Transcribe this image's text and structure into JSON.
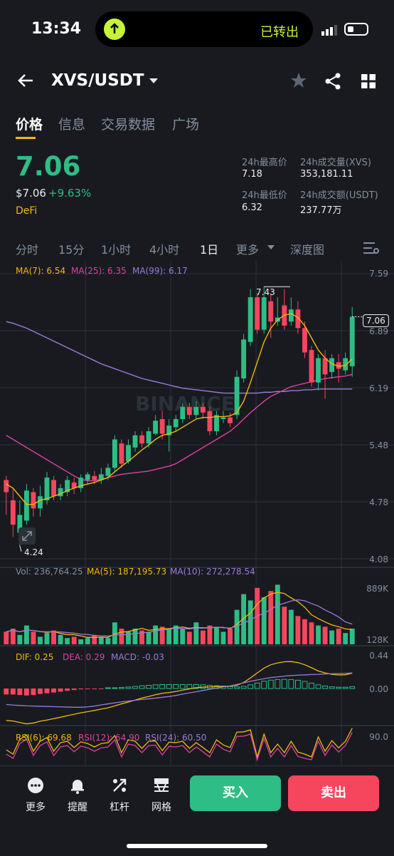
{
  "status": {
    "time": "13:34",
    "island_text": "已转出"
  },
  "header": {
    "pair": "XVS/USDT"
  },
  "tabs": [
    "价格",
    "信息",
    "交易数据",
    "广场"
  ],
  "price": {
    "last": "7.06",
    "usd": "$7.06",
    "change": "+9.63%",
    "category": "DeFi",
    "stats": {
      "high_label": "24h最高价",
      "high": "7.18",
      "low_label": "24h最低价",
      "low": "6.32",
      "vol_label": "24h成交量(XVS)",
      "vol": "353,181.11",
      "amt_label": "24h成交额(USDT)",
      "amt": "237.77万"
    }
  },
  "intervals": [
    "分时",
    "15分",
    "1小时",
    "4小时",
    "1日",
    "更多",
    "深度图"
  ],
  "main_chart": {
    "ma7": "MA(7): 6.54",
    "ma25": "MA(25): 6.35",
    "ma99": "MA(99): 6.17",
    "y_axis": [
      "7.59",
      "6.89",
      "6.19",
      "5.48",
      "4.78",
      "4.08"
    ],
    "high_mark": "7.43",
    "low_mark": "4.24",
    "last_tag": "7.06",
    "watermark": "BINANCE",
    "colors": {
      "up": "#2ebd85",
      "down": "#f6465d",
      "ma7": "#f0b90b",
      "ma25": "#e040a0",
      "ma99": "#9b7bd6"
    }
  },
  "volume_chart": {
    "vol": "Vol: 236,764.25",
    "ma5": "MA(5): 187,195.73",
    "ma10": "MA(10): 272,278.54",
    "y_axis": [
      "889K",
      "128K"
    ]
  },
  "macd_chart": {
    "dif": "DIF: 0.25",
    "dea": "DEA: 0.29",
    "macd": "MACD: -0.03",
    "y_axis": [
      "0.44",
      "0.00"
    ]
  },
  "rsi_chart": {
    "rsi6": "RSI(6): 69.68",
    "rsi12": "RSI(12): 64.90",
    "rsi24": "RSI(24): 60.50",
    "y_axis": [
      "90.0"
    ]
  },
  "bottom_bar": {
    "more": "更多",
    "alert": "提醒",
    "leverage": "杠杆",
    "grid": "网格",
    "buy": "买入",
    "sell": "卖出"
  },
  "chart_data": {
    "type": "candlestick",
    "ylim": [
      4.08,
      7.59
    ],
    "candles": [
      {
        "o": 5.05,
        "c": 4.9,
        "h": 5.1,
        "l": 4.62
      },
      {
        "o": 4.8,
        "c": 4.5,
        "h": 4.95,
        "l": 4.35
      },
      {
        "o": 4.4,
        "c": 4.62,
        "h": 4.8,
        "l": 4.24
      },
      {
        "o": 4.55,
        "c": 4.92,
        "h": 5.0,
        "l": 4.5
      },
      {
        "o": 4.9,
        "c": 4.7,
        "h": 4.95,
        "l": 4.6
      },
      {
        "o": 4.7,
        "c": 4.85,
        "h": 4.98,
        "l": 4.6
      },
      {
        "o": 4.8,
        "c": 5.08,
        "h": 5.15,
        "l": 4.75
      },
      {
        "o": 5.05,
        "c": 4.85,
        "h": 5.1,
        "l": 4.8
      },
      {
        "o": 4.85,
        "c": 4.95,
        "h": 5.0,
        "l": 4.8
      },
      {
        "o": 4.9,
        "c": 5.05,
        "h": 5.1,
        "l": 4.85
      },
      {
        "o": 5.02,
        "c": 4.95,
        "h": 5.08,
        "l": 4.88
      },
      {
        "o": 4.95,
        "c": 5.08,
        "h": 5.12,
        "l": 4.9
      },
      {
        "o": 5.05,
        "c": 5.12,
        "h": 5.15,
        "l": 5.0
      },
      {
        "o": 5.1,
        "c": 5.05,
        "h": 5.16,
        "l": 5.0
      },
      {
        "o": 5.05,
        "c": 5.12,
        "h": 5.2,
        "l": 5.0
      },
      {
        "o": 5.1,
        "c": 5.2,
        "h": 5.25,
        "l": 5.05
      },
      {
        "o": 5.2,
        "c": 5.55,
        "h": 5.6,
        "l": 5.15
      },
      {
        "o": 5.5,
        "c": 5.25,
        "h": 5.55,
        "l": 5.2
      },
      {
        "o": 5.28,
        "c": 5.48,
        "h": 5.55,
        "l": 5.25
      },
      {
        "o": 5.45,
        "c": 5.6,
        "h": 5.65,
        "l": 5.4
      },
      {
        "o": 5.6,
        "c": 5.5,
        "h": 5.65,
        "l": 5.45
      },
      {
        "o": 5.5,
        "c": 5.65,
        "h": 5.7,
        "l": 5.45
      },
      {
        "o": 5.62,
        "c": 5.78,
        "h": 5.85,
        "l": 5.6
      },
      {
        "o": 5.8,
        "c": 5.62,
        "h": 5.9,
        "l": 5.55
      },
      {
        "o": 5.6,
        "c": 5.72,
        "h": 5.8,
        "l": 5.4
      },
      {
        "o": 5.7,
        "c": 5.8,
        "h": 5.85,
        "l": 5.65
      },
      {
        "o": 5.8,
        "c": 5.95,
        "h": 6.0,
        "l": 5.75
      },
      {
        "o": 5.95,
        "c": 5.85,
        "h": 6.0,
        "l": 5.8
      },
      {
        "o": 5.85,
        "c": 5.95,
        "h": 6.02,
        "l": 5.8
      },
      {
        "o": 5.95,
        "c": 5.88,
        "h": 6.0,
        "l": 5.8
      },
      {
        "o": 5.9,
        "c": 5.65,
        "h": 5.95,
        "l": 5.6
      },
      {
        "o": 5.65,
        "c": 5.85,
        "h": 5.9,
        "l": 5.6
      },
      {
        "o": 5.8,
        "c": 5.82,
        "h": 5.9,
        "l": 5.75
      },
      {
        "o": 5.82,
        "c": 5.75,
        "h": 5.88,
        "l": 5.7
      },
      {
        "o": 5.85,
        "c": 6.32,
        "h": 6.4,
        "l": 5.8
      },
      {
        "o": 6.3,
        "c": 6.78,
        "h": 6.85,
        "l": 6.25
      },
      {
        "o": 6.75,
        "c": 7.3,
        "h": 7.4,
        "l": 6.7
      },
      {
        "o": 7.3,
        "c": 6.9,
        "h": 7.35,
        "l": 6.85
      },
      {
        "o": 6.9,
        "c": 7.3,
        "h": 7.43,
        "l": 6.85
      },
      {
        "o": 7.25,
        "c": 7.0,
        "h": 7.35,
        "l": 6.8
      },
      {
        "o": 7.0,
        "c": 7.05,
        "h": 7.3,
        "l": 6.95
      },
      {
        "o": 7.2,
        "c": 6.95,
        "h": 7.4,
        "l": 6.9
      },
      {
        "o": 7.0,
        "c": 7.15,
        "h": 7.3,
        "l": 6.95
      },
      {
        "o": 7.15,
        "c": 6.92,
        "h": 7.25,
        "l": 6.85
      },
      {
        "o": 6.92,
        "c": 6.62,
        "h": 7.0,
        "l": 6.55
      },
      {
        "o": 6.65,
        "c": 6.25,
        "h": 6.7,
        "l": 6.2
      },
      {
        "o": 6.25,
        "c": 6.55,
        "h": 6.6,
        "l": 6.15
      },
      {
        "o": 6.55,
        "c": 6.35,
        "h": 6.65,
        "l": 6.05
      },
      {
        "o": 6.38,
        "c": 6.55,
        "h": 6.6,
        "l": 6.3
      },
      {
        "o": 6.5,
        "c": 6.42,
        "h": 6.6,
        "l": 6.25
      },
      {
        "o": 6.4,
        "c": 6.55,
        "h": 6.62,
        "l": 6.35
      },
      {
        "o": 6.45,
        "c": 7.06,
        "h": 7.18,
        "l": 6.32
      }
    ],
    "volume": [
      0.2,
      0.25,
      0.15,
      0.3,
      0.2,
      0.12,
      0.18,
      0.22,
      0.15,
      0.1,
      0.12,
      0.08,
      0.1,
      0.15,
      0.12,
      0.1,
      0.35,
      0.25,
      0.2,
      0.25,
      0.22,
      0.2,
      0.3,
      0.28,
      0.25,
      0.3,
      0.25,
      0.2,
      0.35,
      0.22,
      0.3,
      0.28,
      0.2,
      0.25,
      0.55,
      0.8,
      0.7,
      0.9,
      0.75,
      0.85,
      0.95,
      0.6,
      0.55,
      0.45,
      0.4,
      0.35,
      0.3,
      0.28,
      0.22,
      0.25,
      0.18,
      0.25
    ],
    "ma7": [
      5.0,
      4.95,
      4.85,
      4.75,
      4.75,
      4.8,
      4.82,
      4.85,
      4.88,
      4.92,
      4.95,
      4.98,
      5.0,
      5.02,
      5.05,
      5.08,
      5.15,
      5.22,
      5.28,
      5.35,
      5.42,
      5.48,
      5.55,
      5.6,
      5.62,
      5.65,
      5.7,
      5.75,
      5.8,
      5.82,
      5.82,
      5.83,
      5.83,
      5.84,
      5.88,
      6.02,
      6.25,
      6.5,
      6.75,
      6.92,
      7.02,
      7.08,
      7.1,
      7.05,
      6.95,
      6.8,
      6.65,
      6.55,
      6.48,
      6.45,
      6.46,
      6.54
    ],
    "ma25": [
      5.6,
      5.55,
      5.5,
      5.45,
      5.4,
      5.35,
      5.3,
      5.25,
      5.2,
      5.15,
      5.1,
      5.06,
      5.04,
      5.04,
      5.06,
      5.08,
      5.1,
      5.12,
      5.13,
      5.14,
      5.15,
      5.16,
      5.18,
      5.2,
      5.22,
      5.25,
      5.3,
      5.35,
      5.4,
      5.45,
      5.5,
      5.55,
      5.6,
      5.65,
      5.72,
      5.8,
      5.88,
      5.95,
      6.02,
      6.08,
      6.12,
      6.16,
      6.2,
      6.22,
      6.24,
      6.26,
      6.28,
      6.3,
      6.31,
      6.32,
      6.33,
      6.35
    ],
    "ma99": [
      7.0,
      6.98,
      6.95,
      6.92,
      6.88,
      6.84,
      6.8,
      6.76,
      6.72,
      6.68,
      6.64,
      6.6,
      6.56,
      6.52,
      6.48,
      6.45,
      6.42,
      6.39,
      6.36,
      6.33,
      6.3,
      6.28,
      6.26,
      6.24,
      6.22,
      6.2,
      6.18,
      6.17,
      6.16,
      6.15,
      6.14,
      6.13,
      6.12,
      6.12,
      6.12,
      6.12,
      6.12,
      6.12,
      6.13,
      6.13,
      6.14,
      6.14,
      6.15,
      6.15,
      6.16,
      6.16,
      6.17,
      6.17,
      6.17,
      6.17,
      6.17,
      6.17
    ]
  }
}
